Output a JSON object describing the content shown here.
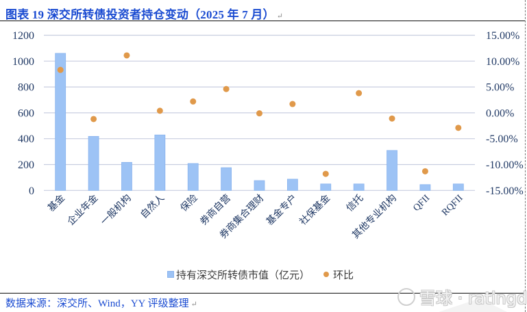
{
  "title": "图表 19 深交所转债投资者持仓变动（2025 年 7 月）",
  "paragraph_mark": "↵",
  "source": "数据来源：深交所、Wind，YY 评级整理",
  "watermark": "雪球 · ratingdog",
  "legend": {
    "bar_label": "持有深交所转债市值（亿元）",
    "dot_label": "环比"
  },
  "colors": {
    "bar": "#9dc3f5",
    "bar_border": "#8ab4ee",
    "dot": "#e0994a",
    "grid": "#c8cee0",
    "axis_text": "#1f3864",
    "title": "#1a4bd1"
  },
  "chart_data": {
    "type": "bar",
    "title": "",
    "xlabel": "",
    "ylabel": "",
    "grid": true,
    "legend_position": "bottom",
    "categories": [
      "基金",
      "企业年金",
      "一般机构",
      "自然人",
      "保险",
      "券商自营",
      "券商集合理财",
      "基金专户",
      "社保基金",
      "信托",
      "其他专业机构",
      "QFII",
      "RQFII"
    ],
    "series": [
      {
        "name": "持有深交所转债市值（亿元）",
        "type": "bar",
        "axis": "left",
        "values": [
          1060,
          418,
          217,
          429,
          208,
          176,
          76,
          87,
          50,
          50,
          309,
          45,
          50
        ]
      },
      {
        "name": "环比",
        "type": "scatter",
        "axis": "right",
        "unit": "%",
        "values": [
          8.3,
          -1.2,
          11.1,
          0.4,
          2.2,
          4.6,
          -0.1,
          1.7,
          -11.8,
          3.8,
          -1.1,
          -11.3,
          -2.9
        ]
      }
    ],
    "left_axis": {
      "ylim": [
        0,
        1200
      ],
      "ticks": [
        0,
        200,
        400,
        600,
        800,
        1000,
        1200
      ],
      "tick_labels": [
        "0",
        "200",
        "400",
        "600",
        "800",
        "1000",
        "1200"
      ]
    },
    "right_axis": {
      "ylim": [
        -15,
        15
      ],
      "ticks": [
        -15,
        -10,
        -5,
        0,
        5,
        10,
        15
      ],
      "tick_labels": [
        "-15.00%",
        "-10.00%",
        "-5.00%",
        "0.00%",
        "5.00%",
        "10.00%",
        "15.00%"
      ]
    }
  }
}
